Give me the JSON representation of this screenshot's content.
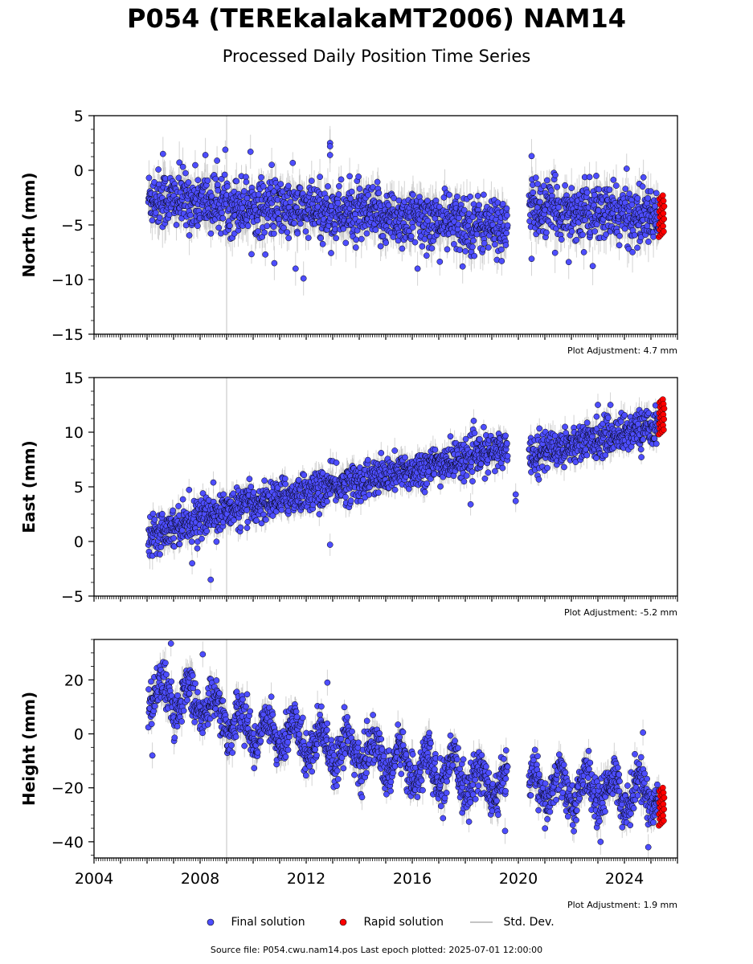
{
  "figure": {
    "title": "P054 (TEREkalakaMT2006) NAM14",
    "subtitle": "Processed Daily Position Time Series",
    "footer": "Source file: P054.cwu.nam14.pos  Last epoch plotted: 2025-07-01 12:00:00"
  },
  "legend": {
    "final": "Final solution",
    "rapid": "Rapid solution",
    "std": "Std. Dev."
  },
  "colors": {
    "final_fill": "#4d4dff",
    "marker_edge": "#000000",
    "rapid_fill": "#ff0000",
    "std_dev": "#b0b0b0"
  },
  "chart_data": [
    {
      "type": "scatter",
      "ylabel": "North (mm)",
      "ylim": [
        -15,
        5
      ],
      "yticks": [
        -15,
        -10,
        -5,
        0,
        5
      ],
      "xlim": [
        2004,
        2026
      ],
      "xticks": [
        2004,
        2008,
        2012,
        2016,
        2020,
        2024
      ],
      "show_xtick_labels": false,
      "adjustment": "Plot Adjustment: 4.7 mm",
      "data_start": 2006.05,
      "gaps": [
        [
          2019.6,
          2020.4
        ]
      ],
      "trend": {
        "type": "linear",
        "points": [
          [
            2006.1,
            -2.5
          ],
          [
            2019.6,
            -5.2
          ],
          [
            2020.4,
            -3.5
          ],
          [
            2025.5,
            -4.3
          ]
        ]
      },
      "noise_sd_mm": 1.3,
      "outliers": [
        [
          2006.6,
          1.5
        ],
        [
          2008.2,
          1.4
        ],
        [
          2009.9,
          1.7
        ],
        [
          2010.7,
          0.5
        ],
        [
          2012.9,
          2.5
        ],
        [
          2012.9,
          2.2
        ],
        [
          2012.9,
          1.4
        ],
        [
          2020.5,
          1.3
        ],
        [
          2010.8,
          -8.5
        ],
        [
          2011.6,
          -9.0
        ],
        [
          2011.9,
          -9.9
        ],
        [
          2016.2,
          -9.0
        ],
        [
          2017.9,
          -8.8
        ],
        [
          2020.5,
          -8.1
        ],
        [
          2021.9,
          -8.4
        ]
      ],
      "rapid": {
        "start": 2025.3,
        "end": 2025.5,
        "range": [
          -6.1,
          -2.3
        ]
      },
      "vline": 2009.0
    },
    {
      "type": "scatter",
      "ylabel": "East (mm)",
      "ylim": [
        -5,
        15
      ],
      "yticks": [
        -5,
        0,
        5,
        10,
        15
      ],
      "xlim": [
        2004,
        2026
      ],
      "xticks": [
        2004,
        2008,
        2012,
        2016,
        2020,
        2024
      ],
      "show_xtick_labels": false,
      "adjustment": "Plot Adjustment: -5.2 mm",
      "data_start": 2006.05,
      "gaps": [
        [
          2019.6,
          2020.4
        ]
      ],
      "trend": {
        "type": "linear",
        "points": [
          [
            2006.1,
            0.8
          ],
          [
            2009.0,
            2.8
          ],
          [
            2012.0,
            4.5
          ],
          [
            2016.0,
            6.5
          ],
          [
            2019.6,
            8.5
          ],
          [
            2020.4,
            8.0
          ],
          [
            2025.5,
            10.8
          ]
        ]
      },
      "noise_sd_mm": 0.85,
      "outliers": [
        [
          2008.5,
          5.4
        ],
        [
          2008.4,
          -3.5
        ],
        [
          2007.7,
          -2.0
        ],
        [
          2012.9,
          -0.3
        ],
        [
          2018.2,
          3.4
        ],
        [
          2019.9,
          3.7
        ],
        [
          2019.9,
          4.3
        ],
        [
          2023.0,
          12.5
        ]
      ],
      "rapid": {
        "start": 2025.3,
        "end": 2025.5,
        "range": [
          9.8,
          13.0
        ]
      },
      "vline": 2009.0
    },
    {
      "type": "scatter",
      "ylabel": "Height (mm)",
      "ylim": [
        -46,
        35
      ],
      "yticks": [
        -40,
        -20,
        0,
        20
      ],
      "xlim": [
        2004,
        2026
      ],
      "xticks": [
        2004,
        2008,
        2012,
        2016,
        2020,
        2024
      ],
      "show_xtick_labels": true,
      "adjustment": "Plot Adjustment: 1.9 mm",
      "data_start": 2006.05,
      "gaps": [
        [
          2019.6,
          2020.4
        ]
      ],
      "trend": {
        "type": "seasonal",
        "points": [
          [
            2006.1,
            15
          ],
          [
            2008.0,
            12
          ],
          [
            2009.5,
            3
          ],
          [
            2012.0,
            -2
          ],
          [
            2016.0,
            -12
          ],
          [
            2019.6,
            -20
          ],
          [
            2020.4,
            -20
          ],
          [
            2025.5,
            -22
          ]
        ],
        "amp": 6
      },
      "noise_sd_mm": 4.0,
      "outliers": [
        [
          2006.9,
          33.5
        ],
        [
          2008.1,
          29.5
        ],
        [
          2006.2,
          -8.0
        ],
        [
          2012.8,
          19.0
        ],
        [
          2019.5,
          -36.0
        ],
        [
          2024.7,
          0.5
        ],
        [
          2024.9,
          -42.0
        ],
        [
          2023.1,
          -40.0
        ]
      ],
      "rapid": {
        "start": 2025.3,
        "end": 2025.5,
        "range": [
          -34.0,
          -20.0
        ]
      },
      "vline": 2009.0
    }
  ]
}
